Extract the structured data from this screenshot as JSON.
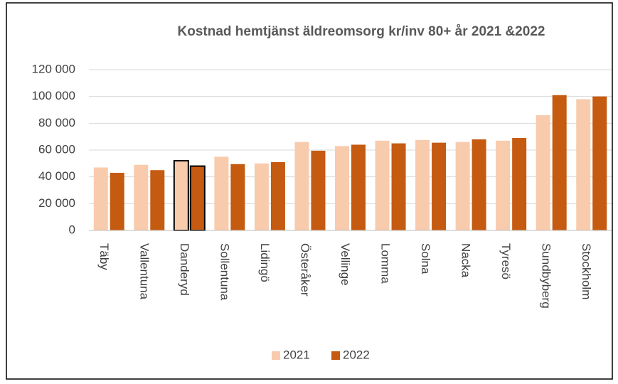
{
  "chart_data": {
    "type": "bar",
    "title": "Kostnad hemtjänst äldreomsorg kr/inv 80+ år 2021  &2022",
    "categories": [
      "Täby",
      "Vallentuna",
      "Danderyd",
      "Sollentuna",
      "Lidingö",
      "Österåker",
      "Vellinge",
      "Lomma",
      "Solna",
      "Nacka",
      "Tyresö",
      "Sundbyberg",
      "Stockholm"
    ],
    "series": [
      {
        "name": "2021",
        "color": "#f8cbad",
        "values": [
          47000,
          49000,
          52000,
          55000,
          50000,
          66000,
          63000,
          67000,
          67500,
          66000,
          67000,
          86000,
          98000
        ]
      },
      {
        "name": "2022",
        "color": "#c55a11",
        "values": [
          43000,
          45000,
          48000,
          49500,
          51000,
          59500,
          64000,
          65000,
          65500,
          68000,
          69000,
          101000,
          100000
        ]
      }
    ],
    "outlined_category_index": 2,
    "ylim": [
      0,
      120000
    ],
    "yticks": [
      {
        "value": 0,
        "label": "0"
      },
      {
        "value": 20000,
        "label": "20 000"
      },
      {
        "value": 40000,
        "label": "40 000"
      },
      {
        "value": 60000,
        "label": "60 000"
      },
      {
        "value": 80000,
        "label": "80 000"
      },
      {
        "value": 100000,
        "label": "100 000"
      },
      {
        "value": 120000,
        "label": "120 000"
      }
    ],
    "grid": true,
    "legend": "bottom"
  }
}
